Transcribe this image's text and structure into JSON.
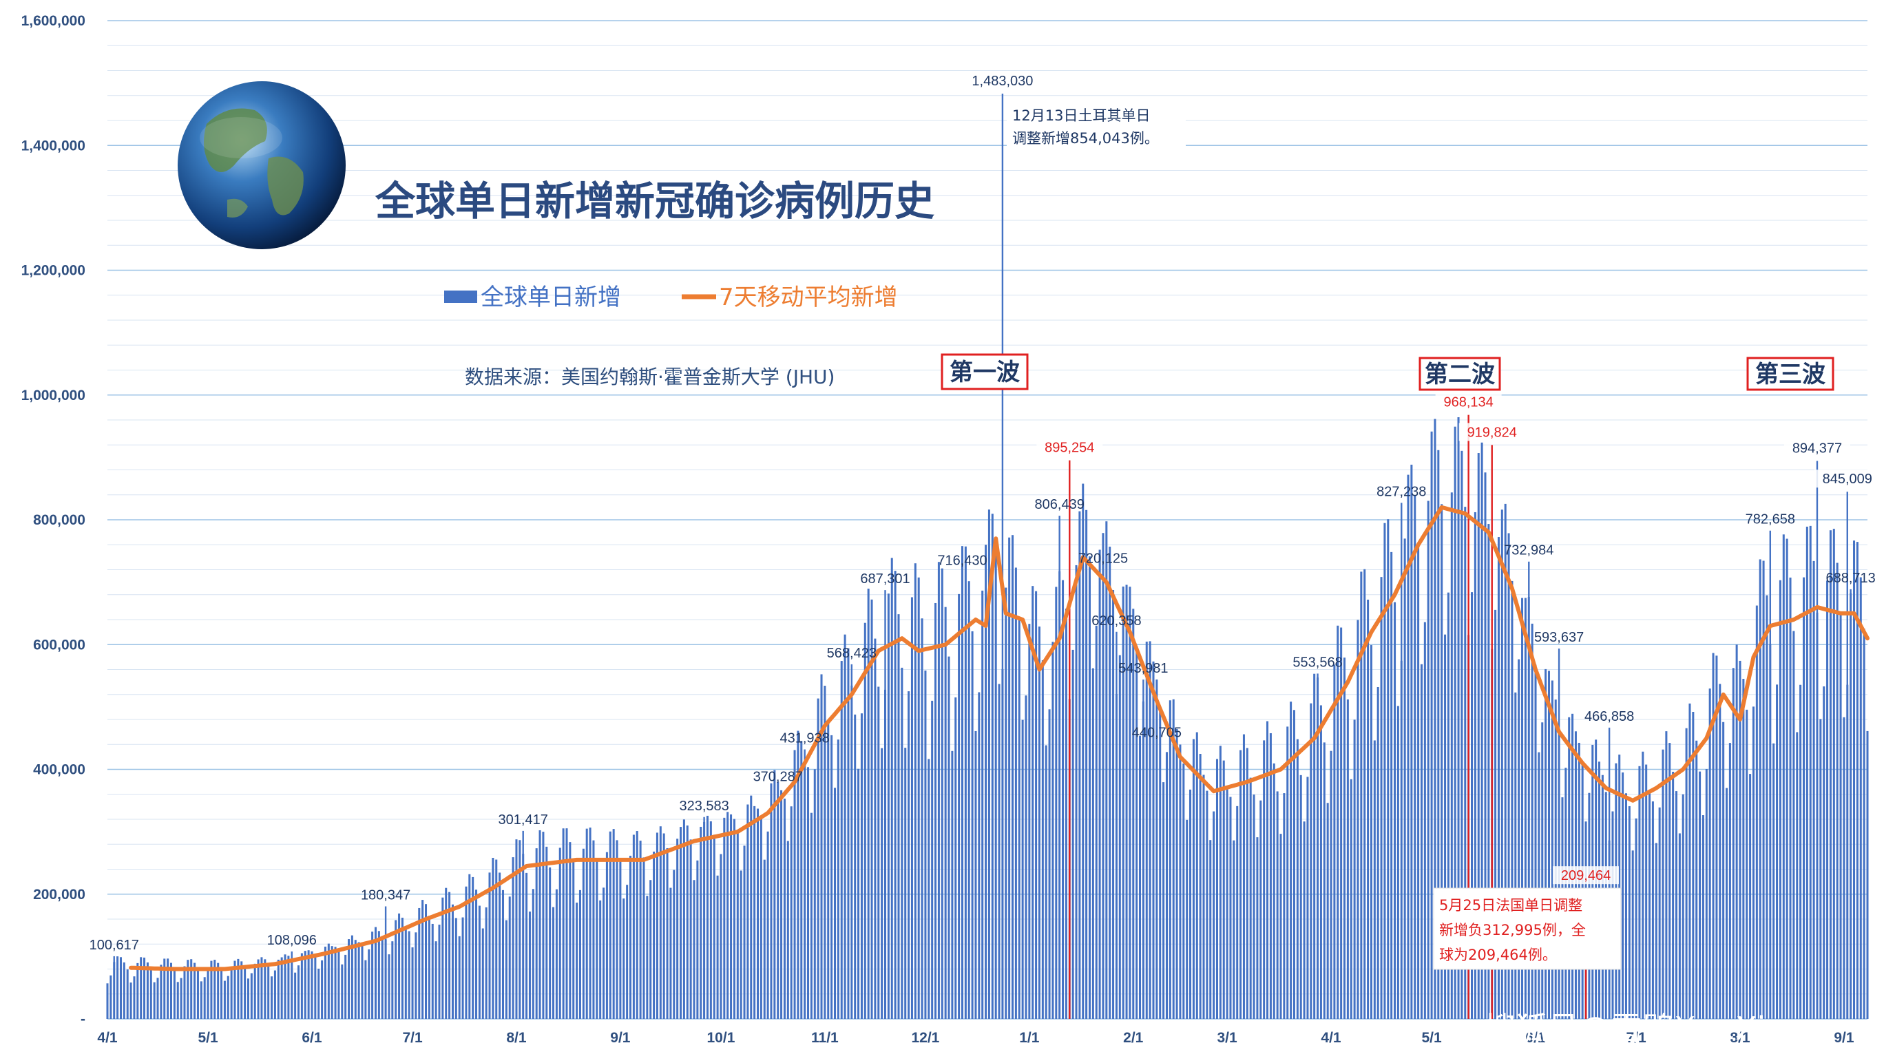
{
  "chart_data": {
    "type": "bar",
    "title": "全球单日新增新冠确诊病例历史",
    "source": "数据来源：美国约翰斯·霍普金斯大学 (JHU)",
    "legend": {
      "placement": "top-left",
      "items": [
        {
          "name": "全球单日新增",
          "color": "#4472c4",
          "shape": "bar"
        },
        {
          "name": "7天移动平均新增",
          "color": "#ed7d31",
          "shape": "line"
        }
      ]
    },
    "y_ticks": [
      "-",
      "200,000",
      "400,000",
      "600,000",
      "800,000",
      "1,000,000",
      "1,200,000",
      "1,400,000",
      "1,600,000"
    ],
    "ylim": [
      0,
      1600000
    ],
    "x_ticks": [
      {
        "label": "4/1",
        "day": 0
      },
      {
        "label": "5/1",
        "day": 30
      },
      {
        "label": "6/1",
        "day": 61
      },
      {
        "label": "7/1",
        "day": 91
      },
      {
        "label": "8/1",
        "day": 122
      },
      {
        "label": "9/1",
        "day": 153
      },
      {
        "label": "10/1",
        "day": 183
      },
      {
        "label": "11/1",
        "day": 214
      },
      {
        "label": "12/1",
        "day": 244
      },
      {
        "label": "1/1",
        "day": 275
      },
      {
        "label": "2/1",
        "day": 306
      },
      {
        "label": "3/1",
        "day": 334
      },
      {
        "label": "4/1",
        "day": 365
      },
      {
        "label": "5/1",
        "day": 395
      },
      {
        "label": "6/1",
        "day": 426
      },
      {
        "label": "7/1",
        "day": 456
      },
      {
        "label": "8/1",
        "day": 487
      },
      {
        "label": "9/1",
        "day": 518
      }
    ],
    "xlim": [
      0,
      525
    ],
    "grid": true,
    "series": [
      {
        "name": "全球单日新增",
        "type": "bar",
        "color": "#4472c4",
        "start_date": "2020-04-01",
        "note": "daily values generated from the 7-day average anchor points with weekly seasonality; labelled peaks set explicitly"
      },
      {
        "name": "7天移动平均新增",
        "type": "line",
        "color": "#ed7d31",
        "anchors": [
          [
            7,
            82000
          ],
          [
            20,
            80000
          ],
          [
            35,
            80000
          ],
          [
            50,
            88000
          ],
          [
            65,
            105000
          ],
          [
            80,
            125000
          ],
          [
            95,
            160000
          ],
          [
            105,
            180000
          ],
          [
            115,
            210000
          ],
          [
            125,
            245000
          ],
          [
            140,
            255000
          ],
          [
            160,
            255000
          ],
          [
            175,
            285000
          ],
          [
            188,
            300000
          ],
          [
            197,
            330000
          ],
          [
            205,
            380000
          ],
          [
            214,
            470000
          ],
          [
            222,
            520000
          ],
          [
            230,
            590000
          ],
          [
            237,
            610000
          ],
          [
            242,
            590000
          ],
          [
            250,
            600000
          ],
          [
            259,
            640000
          ],
          [
            262,
            630000
          ],
          [
            265,
            770000
          ],
          [
            268,
            650000
          ],
          [
            273,
            640000
          ],
          [
            278,
            560000
          ],
          [
            284,
            610000
          ],
          [
            291,
            740000
          ],
          [
            298,
            700000
          ],
          [
            305,
            620000
          ],
          [
            313,
            510000
          ],
          [
            320,
            420000
          ],
          [
            330,
            365000
          ],
          [
            340,
            380000
          ],
          [
            350,
            400000
          ],
          [
            360,
            450000
          ],
          [
            370,
            540000
          ],
          [
            377,
            620000
          ],
          [
            384,
            680000
          ],
          [
            391,
            760000
          ],
          [
            398,
            820000
          ],
          [
            405,
            810000
          ],
          [
            412,
            780000
          ],
          [
            419,
            690000
          ],
          [
            426,
            560000
          ],
          [
            433,
            460000
          ],
          [
            440,
            410000
          ],
          [
            447,
            370000
          ],
          [
            455,
            350000
          ],
          [
            462,
            370000
          ],
          [
            470,
            400000
          ],
          [
            477,
            450000
          ],
          [
            482,
            520000
          ],
          [
            487,
            480000
          ],
          [
            491,
            580000
          ],
          [
            496,
            630000
          ],
          [
            503,
            640000
          ],
          [
            510,
            660000
          ],
          [
            517,
            650000
          ],
          [
            521,
            650000
          ],
          [
            525,
            610000
          ]
        ]
      }
    ],
    "spikes": [
      {
        "day": 267,
        "value": 1483030,
        "label": "1,483,030"
      },
      {
        "day": 287,
        "value": 895254,
        "label": "895,254",
        "highlight": true
      },
      {
        "day": 406,
        "value": 968134,
        "label": "968,134",
        "highlight": true
      },
      {
        "day": 413,
        "value": 919824,
        "label": "919,824",
        "highlight": true
      },
      {
        "day": 510,
        "value": 894377,
        "label": "894,377"
      },
      {
        "day": 519,
        "value": 845009,
        "label": "845,009"
      },
      {
        "day": 441,
        "value": 209464,
        "label": "209,464",
        "highlight": true
      }
    ],
    "data_labels": [
      {
        "day": 2,
        "value": 100617,
        "label": "100,617"
      },
      {
        "day": 55,
        "value": 108096,
        "label": "108,096"
      },
      {
        "day": 83,
        "value": 180347,
        "label": "180,347"
      },
      {
        "day": 124,
        "value": 301417,
        "label": "301,417"
      },
      {
        "day": 178,
        "value": 323583,
        "label": "323,583"
      },
      {
        "day": 200,
        "value": 370287,
        "label": "370,287"
      },
      {
        "day": 208,
        "value": 431938,
        "label": "431,938"
      },
      {
        "day": 222,
        "value": 568423,
        "label": "568,423"
      },
      {
        "day": 232,
        "value": 687301,
        "label": "687,301"
      },
      {
        "day": 255,
        "value": 716430,
        "label": "716,430"
      },
      {
        "day": 284,
        "value": 806439,
        "label": "806,439"
      },
      {
        "day": 297,
        "value": 720125,
        "label": "720,125"
      },
      {
        "day": 301,
        "value": 620358,
        "label": "620,358"
      },
      {
        "day": 309,
        "value": 543981,
        "label": "543,981"
      },
      {
        "day": 313,
        "value": 440705,
        "label": "440,705"
      },
      {
        "day": 361,
        "value": 553568,
        "label": "553,568"
      },
      {
        "day": 386,
        "value": 827238,
        "label": "827,238"
      },
      {
        "day": 424,
        "value": 732984,
        "label": "732,984"
      },
      {
        "day": 433,
        "value": 593637,
        "label": "593,637"
      },
      {
        "day": 448,
        "value": 466858,
        "label": "466,858"
      },
      {
        "day": 496,
        "value": 782658,
        "label": "782,658"
      },
      {
        "day": 520,
        "value": 688713,
        "label": "688,713"
      }
    ],
    "annotations": [
      {
        "lines": [
          "12月13日土耳其单日",
          "调整新增854,043例。"
        ],
        "color": "#1f3864"
      },
      {
        "lines": [
          "5月25日法国单日调整",
          "新增负312,995例，全",
          "球为209,464例。"
        ],
        "color": "#e02020"
      }
    ],
    "waves": [
      "第一波",
      "第二波",
      "第三波"
    ]
  },
  "watermark": "搜狐号@雪鸮XueXiao"
}
